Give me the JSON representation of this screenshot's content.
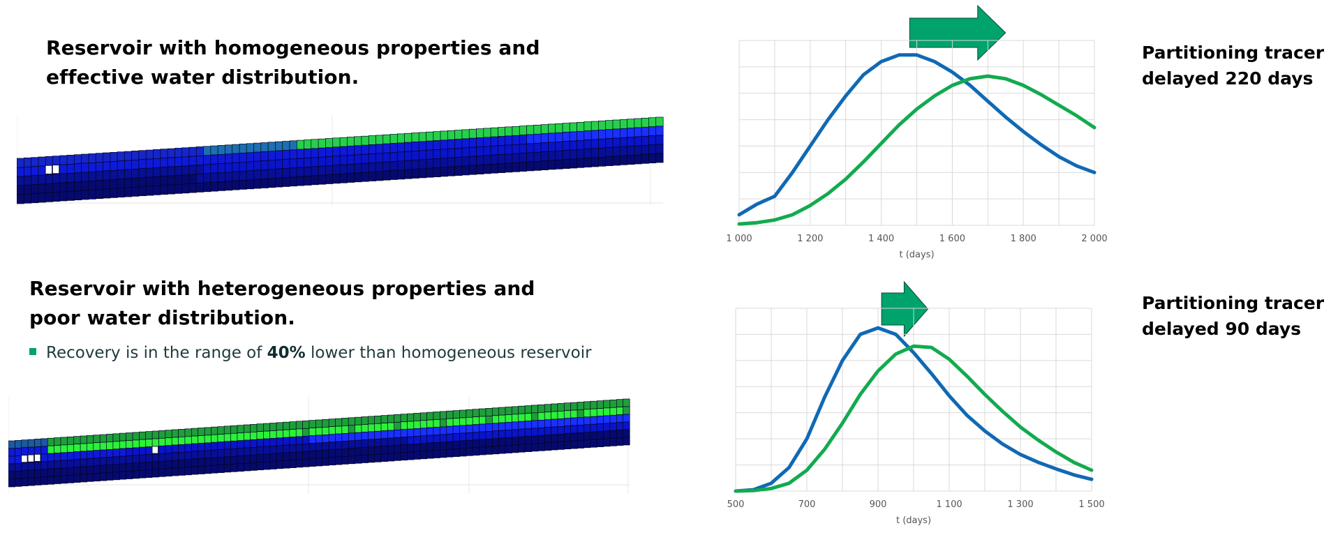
{
  "top": {
    "heading": [
      "Reservoir with homogeneous properties and",
      "effective water distribution."
    ],
    "result": [
      "Partitioning tracer",
      "delayed 220 days"
    ],
    "model_colors": [
      "#060a6e",
      "#0a14c8",
      "#1a30ff",
      "#2ec46a"
    ]
  },
  "bottom": {
    "heading": [
      "Reservoir with heterogeneous properties and",
      "poor water distribution."
    ],
    "bullet": {
      "before": "Recovery is in the range of ",
      "bold": "40%",
      "after": " lower than homogeneous reservoir"
    },
    "result": [
      "Partitioning tracer",
      "delayed 90 days"
    ],
    "model_colors": [
      "#060a6e",
      "#0a14c8",
      "#1f9e3a",
      "#2df03a"
    ]
  },
  "chart_data": [
    {
      "type": "line",
      "xlabel": "t (days)",
      "ylabel": "",
      "xlim": [
        1000,
        2000
      ],
      "xticks": [
        1000,
        1200,
        1400,
        1600,
        1800,
        2000
      ],
      "xtick_labels": [
        "1 000",
        "1 200",
        "1 400",
        "1 600",
        "1 800",
        "2 000"
      ],
      "ylim": [
        0,
        7
      ],
      "grid": true,
      "arrow": {
        "from": 1480,
        "to": 1750,
        "color": "#00a36c"
      },
      "series": [
        {
          "color": "#1069b3",
          "x": [
            1000,
            1050,
            1100,
            1150,
            1200,
            1250,
            1300,
            1350,
            1400,
            1450,
            1500,
            1550,
            1600,
            1650,
            1700,
            1750,
            1800,
            1850,
            1900,
            1950,
            2000
          ],
          "y": [
            0.4,
            0.8,
            1.1,
            2.0,
            3.0,
            4.0,
            4.9,
            5.7,
            6.2,
            6.45,
            6.45,
            6.2,
            5.8,
            5.3,
            4.7,
            4.1,
            3.55,
            3.05,
            2.6,
            2.25,
            2.0
          ]
        },
        {
          "color": "#13aa4f",
          "x": [
            1000,
            1050,
            1100,
            1150,
            1200,
            1250,
            1300,
            1350,
            1400,
            1450,
            1500,
            1550,
            1600,
            1650,
            1700,
            1750,
            1800,
            1850,
            1900,
            1950,
            2000
          ],
          "y": [
            0.05,
            0.1,
            0.2,
            0.4,
            0.75,
            1.2,
            1.75,
            2.4,
            3.1,
            3.8,
            4.4,
            4.9,
            5.3,
            5.55,
            5.65,
            5.55,
            5.3,
            4.95,
            4.55,
            4.15,
            3.7
          ]
        }
      ]
    },
    {
      "type": "line",
      "xlabel": "t (days)",
      "ylabel": "",
      "xlim": [
        500,
        1500
      ],
      "xticks": [
        500,
        700,
        900,
        1100,
        1300,
        1500
      ],
      "xtick_labels": [
        "500",
        "700",
        "900",
        "1 100",
        "1 300",
        "1 500"
      ],
      "ylim": [
        0,
        7
      ],
      "grid": true,
      "arrow": {
        "from": 910,
        "to": 1040,
        "color": "#00a36c"
      },
      "series": [
        {
          "color": "#1069b3",
          "x": [
            500,
            550,
            600,
            650,
            700,
            750,
            800,
            850,
            900,
            950,
            1000,
            1050,
            1100,
            1150,
            1200,
            1250,
            1300,
            1350,
            1400,
            1450,
            1500
          ],
          "y": [
            0.0,
            0.05,
            0.3,
            0.9,
            2.0,
            3.6,
            5.0,
            6.0,
            6.25,
            6.0,
            5.3,
            4.5,
            3.65,
            2.9,
            2.3,
            1.8,
            1.4,
            1.1,
            0.85,
            0.62,
            0.45
          ]
        },
        {
          "color": "#13aa4f",
          "x": [
            500,
            550,
            600,
            650,
            700,
            750,
            800,
            850,
            900,
            950,
            1000,
            1050,
            1100,
            1150,
            1200,
            1250,
            1300,
            1350,
            1400,
            1450,
            1500
          ],
          "y": [
            0.0,
            0.02,
            0.1,
            0.3,
            0.8,
            1.6,
            2.6,
            3.7,
            4.6,
            5.25,
            5.55,
            5.5,
            5.05,
            4.4,
            3.7,
            3.05,
            2.45,
            1.95,
            1.5,
            1.1,
            0.8
          ]
        }
      ]
    }
  ]
}
